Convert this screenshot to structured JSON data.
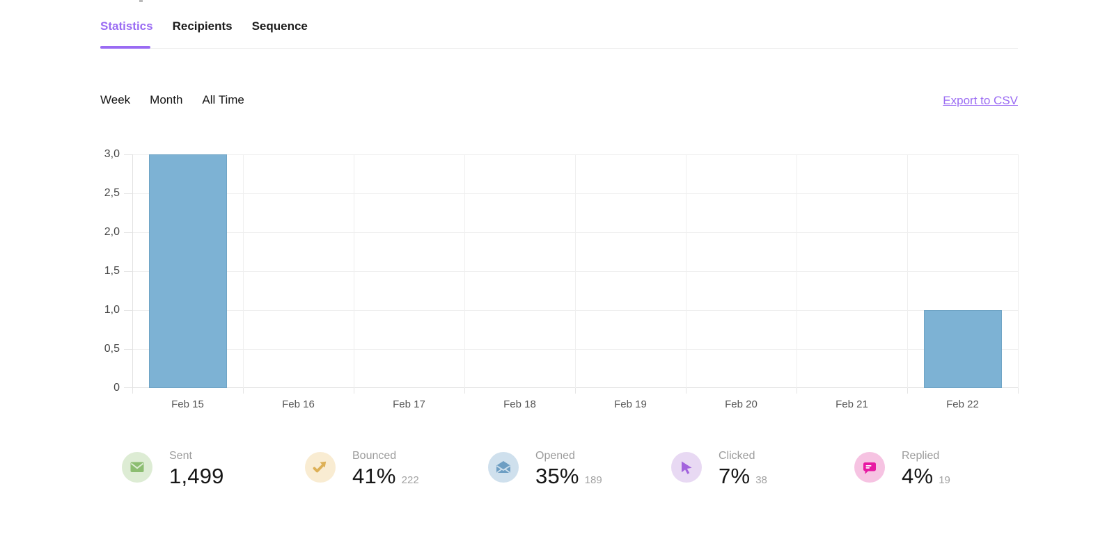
{
  "theme": {
    "accent": "#9a6bf3",
    "bar_color": "#7db2d4"
  },
  "tabs": [
    {
      "label": "Statistics",
      "active": true
    },
    {
      "label": "Recipients",
      "active": false
    },
    {
      "label": "Sequence",
      "active": false
    }
  ],
  "filters": {
    "options": [
      "Week",
      "Month",
      "All Time"
    ]
  },
  "export_label": "Export to CSV",
  "chart_data": {
    "type": "bar",
    "title": "",
    "xlabel": "",
    "ylabel": "",
    "categories": [
      "Feb 15",
      "Feb 16",
      "Feb 17",
      "Feb 18",
      "Feb 19",
      "Feb 20",
      "Feb 21",
      "Feb 22"
    ],
    "values": [
      3,
      0,
      0,
      0,
      0,
      0,
      0,
      1
    ],
    "ylim": [
      0,
      3
    ],
    "y_tick_values": [
      3,
      2.5,
      2,
      1.5,
      1,
      0.5,
      0
    ],
    "y_tick_labels": [
      "3,0",
      "2,5",
      "2,0",
      "1,5",
      "1,0",
      "0,5",
      "0"
    ],
    "grid": true,
    "legend_position": "none",
    "bar_color": "#7db2d4"
  },
  "stats": [
    {
      "name": "sent",
      "label": "Sent",
      "value": "1,499",
      "count": "",
      "bg_color": "#ddecd4",
      "icon_color": "#8cbd71"
    },
    {
      "name": "bounced",
      "label": "Bounced",
      "value": "41%",
      "count": "222",
      "bg_color": "#f9ecd2",
      "icon_color": "#ddb056"
    },
    {
      "name": "opened",
      "label": "Opened",
      "value": "35%",
      "count": "189",
      "bg_color": "#cfe0ed",
      "icon_color": "#6d9ec3"
    },
    {
      "name": "clicked",
      "label": "Clicked",
      "value": "7%",
      "count": "38",
      "bg_color": "#e8d9f3",
      "icon_color": "#a263dd"
    },
    {
      "name": "replied",
      "label": "Replied",
      "value": "4%",
      "count": "19",
      "bg_color": "#f6c3e2",
      "icon_color": "#e718a2"
    }
  ]
}
